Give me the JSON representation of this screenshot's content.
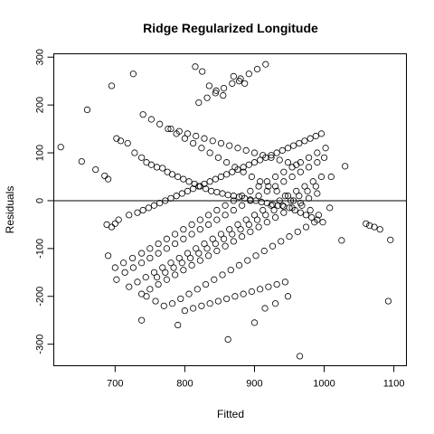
{
  "chart_data": {
    "type": "scatter",
    "title": "Ridge Regularized Longitude",
    "xlabel": "Fitted",
    "ylabel": "Residuals",
    "xlim": [
      612,
      1118
    ],
    "ylim": [
      -345,
      307
    ],
    "xticks": [
      700,
      800,
      900,
      1000,
      1100
    ],
    "yticks": [
      -300,
      -200,
      -100,
      0,
      100,
      200,
      300
    ],
    "reference_line": {
      "y": 0
    },
    "grid": false,
    "legend": "none",
    "point_color": "#000000",
    "series": [
      {
        "x": [
          622,
          660,
          652,
          672,
          685,
          690,
          695,
          702,
          708,
          718,
          728,
          738,
          745,
          752,
          760,
          768,
          775,
          782,
          790,
          798,
          806,
          814,
          822,
          830,
          838,
          846,
          854,
          862,
          870,
          878,
          886,
          894,
          902,
          910,
          918,
          926,
          934,
          942,
          950,
          958,
          966,
          974,
          982,
          990,
          998,
          1008,
          1025,
          1060,
          1072,
          1095,
          688,
          695,
          705,
          720,
          732,
          740,
          748,
          756,
          764,
          772,
          780,
          788,
          796,
          804,
          812,
          820,
          828,
          836,
          844,
          852,
          860,
          868,
          876,
          884,
          892,
          900,
          908,
          916,
          924,
          932,
          940,
          948,
          956,
          964,
          972,
          980,
          988,
          996,
          1010,
          1030,
          1065,
          1080,
          700,
          712,
          725,
          738,
          750,
          762,
          774,
          786,
          798,
          810,
          822,
          834,
          846,
          858,
          870,
          882,
          894,
          906,
          918,
          930,
          942,
          954,
          966,
          978,
          990,
          1002,
          690,
          702,
          714,
          726,
          738,
          750,
          762,
          774,
          786,
          798,
          810,
          822,
          834,
          846,
          858,
          870,
          882,
          894,
          906,
          918,
          930,
          942,
          954,
          966,
          978,
          990,
          1000,
          1092,
          720,
          732,
          744,
          756,
          768,
          780,
          792,
          804,
          816,
          828,
          840,
          852,
          864,
          876,
          888,
          900,
          912,
          924,
          936,
          948,
          960,
          972,
          984,
          996,
          738,
          750,
          762,
          774,
          786,
          798,
          810,
          822,
          834,
          846,
          858,
          870,
          882,
          894,
          906,
          918,
          930,
          942,
          954,
          966,
          978,
          990,
          726,
          740,
          752,
          764,
          776,
          788,
          800,
          812,
          824,
          836,
          848,
          860,
          872,
          884,
          896,
          908,
          920,
          932,
          944,
          956,
          968,
          980,
          992,
          745,
          758,
          770,
          782,
          794,
          806,
          818,
          830,
          842,
          854,
          866,
          878,
          890,
          902,
          914,
          926,
          938,
          950,
          962,
          974,
          986,
          760,
          772,
          784,
          796,
          808,
          820,
          832,
          844,
          856,
          868,
          880,
          892,
          904,
          916,
          928,
          940,
          952,
          964,
          976,
          988,
          780,
          792,
          804,
          816,
          828,
          840,
          852,
          864,
          876,
          888,
          900,
          912,
          924,
          936,
          948,
          960,
          800,
          812,
          824,
          836,
          848,
          860,
          872,
          884,
          896,
          908,
          920,
          932,
          944,
          820,
          832,
          844,
          856,
          868,
          880,
          892,
          904,
          916,
          700,
          738,
          790,
          815,
          825,
          835,
          845,
          855,
          862,
          870,
          878,
          886,
          900,
          915,
          930,
          948,
          965
        ],
        "y": [
          112,
          190,
          82,
          65,
          52,
          45,
          240,
          130,
          125,
          120,
          100,
          90,
          80,
          75,
          70,
          68,
          60,
          55,
          50,
          45,
          40,
          35,
          30,
          25,
          20,
          18,
          15,
          12,
          10,
          8,
          5,
          2,
          0,
          -3,
          -5,
          -8,
          -10,
          -12,
          -15,
          -20,
          -25,
          -30,
          -35,
          -40,
          -45,
          -15,
          -83,
          -48,
          -55,
          -82,
          -50,
          -55,
          -40,
          -30,
          -25,
          -20,
          -15,
          -10,
          -5,
          0,
          5,
          10,
          15,
          20,
          25,
          30,
          35,
          40,
          45,
          50,
          55,
          60,
          65,
          70,
          75,
          80,
          85,
          90,
          95,
          100,
          105,
          110,
          115,
          120,
          125,
          130,
          135,
          140,
          50,
          72,
          -52,
          -60,
          -140,
          -130,
          -120,
          -110,
          -100,
          -90,
          -80,
          -70,
          -60,
          -50,
          -40,
          -30,
          -20,
          -10,
          0,
          10,
          20,
          30,
          40,
          50,
          60,
          70,
          80,
          90,
          100,
          110,
          -115,
          -165,
          -150,
          -140,
          -130,
          -120,
          -110,
          -100,
          -90,
          -80,
          -70,
          -60,
          -50,
          -40,
          -30,
          -20,
          -10,
          0,
          10,
          20,
          30,
          40,
          50,
          60,
          70,
          80,
          90,
          -210,
          -180,
          -170,
          -160,
          -150,
          -140,
          -130,
          -120,
          -110,
          -100,
          -90,
          -80,
          -70,
          -60,
          -50,
          -40,
          -30,
          -20,
          -10,
          0,
          10,
          20,
          30,
          40,
          50,
          -195,
          -185,
          -175,
          -165,
          -155,
          -145,
          -135,
          -125,
          -115,
          -105,
          -95,
          -85,
          -75,
          -65,
          -55,
          -45,
          -35,
          -25,
          -15,
          -5,
          5,
          15,
          265,
          180,
          170,
          160,
          150,
          140,
          130,
          120,
          110,
          100,
          90,
          80,
          70,
          60,
          50,
          40,
          30,
          20,
          10,
          0,
          -10,
          -20,
          -30,
          -200,
          -210,
          -220,
          -215,
          -205,
          -195,
          -185,
          -175,
          -165,
          -155,
          -145,
          -135,
          -125,
          -115,
          -105,
          -95,
          -85,
          -75,
          -65,
          -55,
          -45,
          -160,
          -150,
          -140,
          -130,
          -120,
          -110,
          -100,
          -90,
          -80,
          -70,
          -60,
          -50,
          -40,
          -30,
          -20,
          -10,
          0,
          10,
          20,
          30,
          150,
          145,
          140,
          135,
          130,
          125,
          120,
          115,
          110,
          105,
          100,
          95,
          90,
          85,
          80,
          75,
          -230,
          -225,
          -220,
          -215,
          -210,
          -205,
          -200,
          -195,
          -190,
          -185,
          -180,
          -175,
          -170,
          205,
          215,
          225,
          235,
          245,
          255,
          265,
          275,
          285,
          -48,
          -250,
          -260,
          280,
          270,
          240,
          230,
          220,
          -290,
          260,
          250,
          245,
          -255,
          -225,
          -215,
          -200,
          -325
        ]
      }
    ]
  }
}
